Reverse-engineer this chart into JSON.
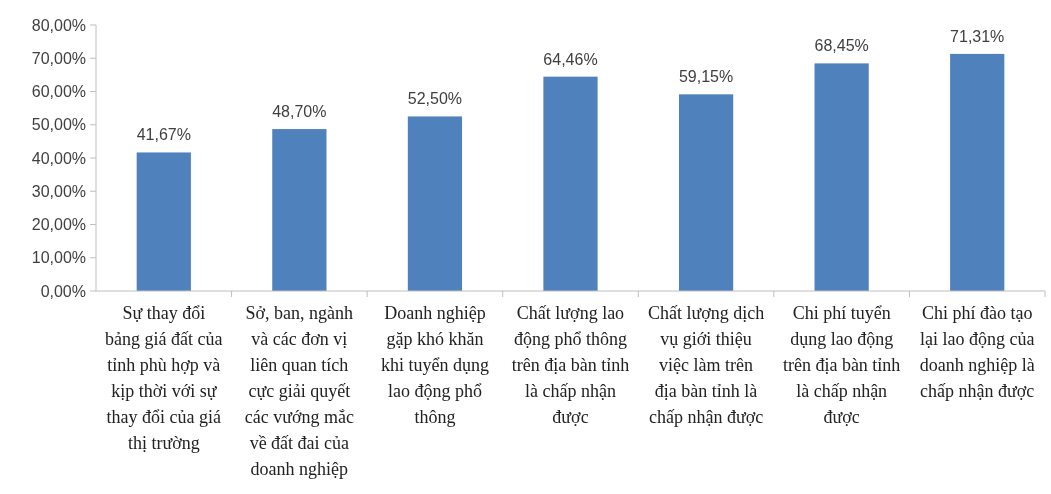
{
  "chart_data": {
    "type": "bar",
    "categories": [
      "Sự thay đổi bảng giá đất của tỉnh phù hợp và kịp thời với sự thay đổi của giá thị trường",
      "Sở, ban, ngành và các đơn vị liên quan tích cực giải quyết các vướng mắc về đất đai của doanh nghiệp",
      "Doanh nghiệp gặp khó khăn khi tuyển dụng lao động phổ thông",
      "Chất lượng lao động phổ thông trên địa bàn tỉnh là chấp nhận được",
      "Chất lượng dịch vụ giới thiệu việc làm trên địa bàn tỉnh là chấp nhận được",
      "Chi phí tuyển dụng lao động trên địa bàn tỉnh là chấp nhận được",
      "Chi phí đào tạo lại lao động của doanh nghiệp là chấp nhận được"
    ],
    "values": [
      41.67,
      48.7,
      52.5,
      64.46,
      59.15,
      68.45,
      71.31
    ],
    "value_labels": [
      "41,67%",
      "48,70%",
      "52,50%",
      "64,46%",
      "59,15%",
      "68,45%",
      "71,31%"
    ],
    "color": "#4f81bd",
    "ylim": [
      0,
      80
    ],
    "yticks": [
      {
        "value": 0,
        "label": "0,00%"
      },
      {
        "value": 10,
        "label": "10,00%"
      },
      {
        "value": 20,
        "label": "20,00%"
      },
      {
        "value": 30,
        "label": "30,00%"
      },
      {
        "value": 40,
        "label": "40,00%"
      },
      {
        "value": 50,
        "label": "50,00%"
      },
      {
        "value": 60,
        "label": "60,00%"
      },
      {
        "value": 70,
        "label": "70,00%"
      },
      {
        "value": 80,
        "label": "80,00%"
      }
    ],
    "grid": false
  }
}
